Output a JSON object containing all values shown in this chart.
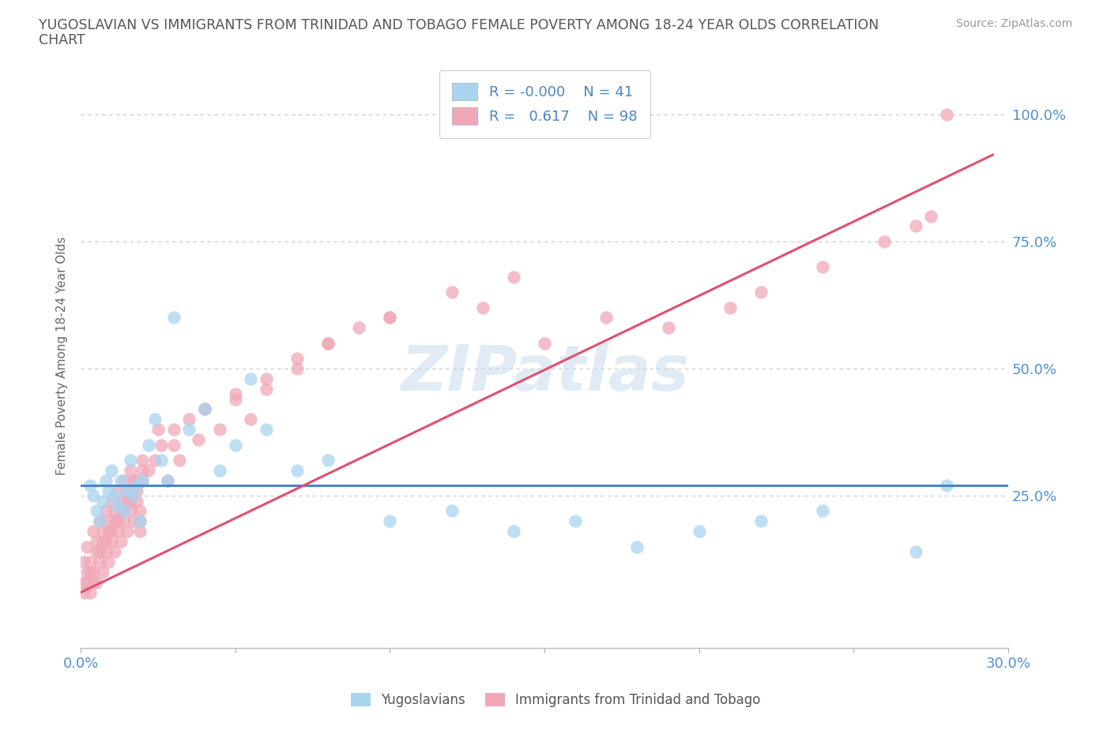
{
  "title_line1": "YUGOSLAVIAN VS IMMIGRANTS FROM TRINIDAD AND TOBAGO FEMALE POVERTY AMONG 18-24 YEAR OLDS CORRELATION",
  "title_line2": "CHART",
  "source_text": "Source: ZipAtlas.com",
  "ylabel": "Female Poverty Among 18-24 Year Olds",
  "xlim": [
    0.0,
    0.3
  ],
  "ylim": [
    -0.05,
    1.1
  ],
  "yticks": [
    0.0,
    0.25,
    0.5,
    0.75,
    1.0
  ],
  "ytick_labels": [
    "",
    "25.0%",
    "50.0%",
    "75.0%",
    "100.0%"
  ],
  "xticks": [
    0.0,
    0.05,
    0.1,
    0.15,
    0.2,
    0.25,
    0.3
  ],
  "xtick_labels": [
    "0.0%",
    "",
    "",
    "",
    "",
    "",
    "30.0%"
  ],
  "color_yug": "#a8d4f0",
  "color_tt": "#f0a8b8",
  "line_color_yug": "#4a86c8",
  "line_color_tt": "#e05070",
  "legend_R_yug": "-0.000",
  "legend_N_yug": "41",
  "legend_R_tt": "0.617",
  "legend_N_tt": "98",
  "watermark": "ZIPatlas",
  "background_color": "#ffffff",
  "grid_color": "#c8c8c8",
  "axis_label_color": "#5090d0",
  "title_color": "#555555",
  "yug_line_y": 0.27,
  "tt_line_x": [
    0.0,
    0.295
  ],
  "tt_line_y": [
    0.06,
    0.92
  ],
  "yug_scatter_x": [
    0.003,
    0.004,
    0.005,
    0.006,
    0.007,
    0.008,
    0.009,
    0.01,
    0.011,
    0.012,
    0.013,
    0.014,
    0.015,
    0.016,
    0.017,
    0.018,
    0.019,
    0.02,
    0.022,
    0.024,
    0.026,
    0.028,
    0.03,
    0.035,
    0.04,
    0.045,
    0.05,
    0.055,
    0.06,
    0.07,
    0.08,
    0.1,
    0.12,
    0.14,
    0.16,
    0.18,
    0.2,
    0.22,
    0.24,
    0.27,
    0.28
  ],
  "yug_scatter_y": [
    0.27,
    0.25,
    0.22,
    0.2,
    0.24,
    0.28,
    0.26,
    0.3,
    0.25,
    0.23,
    0.28,
    0.22,
    0.26,
    0.32,
    0.25,
    0.27,
    0.2,
    0.28,
    0.35,
    0.4,
    0.32,
    0.28,
    0.6,
    0.38,
    0.42,
    0.3,
    0.35,
    0.48,
    0.38,
    0.3,
    0.32,
    0.2,
    0.22,
    0.18,
    0.2,
    0.15,
    0.18,
    0.2,
    0.22,
    0.14,
    0.27
  ],
  "tt_scatter_x": [
    0.001,
    0.002,
    0.003,
    0.004,
    0.005,
    0.006,
    0.007,
    0.008,
    0.009,
    0.01,
    0.011,
    0.012,
    0.013,
    0.014,
    0.015,
    0.016,
    0.017,
    0.018,
    0.019,
    0.02,
    0.001,
    0.002,
    0.003,
    0.004,
    0.005,
    0.006,
    0.007,
    0.008,
    0.009,
    0.01,
    0.011,
    0.012,
    0.013,
    0.014,
    0.015,
    0.016,
    0.017,
    0.018,
    0.019,
    0.02,
    0.001,
    0.002,
    0.003,
    0.004,
    0.005,
    0.006,
    0.007,
    0.008,
    0.009,
    0.01,
    0.011,
    0.012,
    0.013,
    0.014,
    0.015,
    0.016,
    0.017,
    0.018,
    0.019,
    0.02,
    0.022,
    0.024,
    0.026,
    0.028,
    0.03,
    0.032,
    0.035,
    0.038,
    0.04,
    0.045,
    0.05,
    0.055,
    0.06,
    0.07,
    0.08,
    0.09,
    0.1,
    0.12,
    0.14,
    0.15,
    0.17,
    0.19,
    0.21,
    0.22,
    0.24,
    0.26,
    0.27,
    0.275,
    0.025,
    0.03,
    0.04,
    0.05,
    0.06,
    0.07,
    0.08,
    0.1,
    0.13,
    0.28
  ],
  "tt_scatter_y": [
    0.12,
    0.15,
    0.1,
    0.18,
    0.14,
    0.2,
    0.16,
    0.22,
    0.18,
    0.24,
    0.2,
    0.26,
    0.22,
    0.28,
    0.24,
    0.3,
    0.26,
    0.28,
    0.2,
    0.32,
    0.08,
    0.1,
    0.12,
    0.08,
    0.16,
    0.12,
    0.18,
    0.14,
    0.2,
    0.16,
    0.22,
    0.18,
    0.24,
    0.2,
    0.26,
    0.22,
    0.28,
    0.24,
    0.18,
    0.3,
    0.06,
    0.08,
    0.06,
    0.1,
    0.08,
    0.14,
    0.1,
    0.16,
    0.12,
    0.18,
    0.14,
    0.2,
    0.16,
    0.22,
    0.18,
    0.24,
    0.2,
    0.26,
    0.22,
    0.28,
    0.3,
    0.32,
    0.35,
    0.28,
    0.38,
    0.32,
    0.4,
    0.36,
    0.42,
    0.38,
    0.44,
    0.4,
    0.46,
    0.5,
    0.55,
    0.58,
    0.6,
    0.65,
    0.68,
    0.55,
    0.6,
    0.58,
    0.62,
    0.65,
    0.7,
    0.75,
    0.78,
    0.8,
    0.38,
    0.35,
    0.42,
    0.45,
    0.48,
    0.52,
    0.55,
    0.6,
    0.62,
    1.0
  ]
}
